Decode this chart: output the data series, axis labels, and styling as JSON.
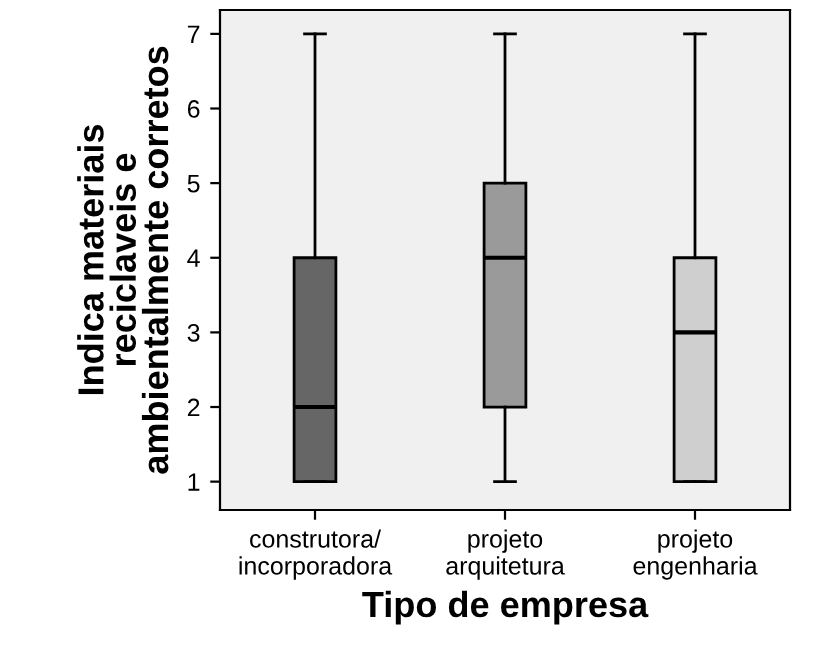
{
  "chart_data": {
    "type": "box",
    "xlabel": "Tipo de empresa",
    "ylabel": "Indica materiais\nreciclaveis e\nambientalmente corretos",
    "categories": [
      "construtora/\nincorporadora",
      "projeto\narquitetura",
      "projeto\nengenharia"
    ],
    "boxes": [
      {
        "low": 1,
        "q1": 1,
        "median": 2,
        "q3": 4,
        "high": 7
      },
      {
        "low": 1,
        "q1": 2,
        "median": 4,
        "q3": 5,
        "high": 7
      },
      {
        "low": 1,
        "q1": 1,
        "median": 3,
        "q3": 4,
        "high": 7
      }
    ],
    "colors": [
      "#666666",
      "#9a9a9a",
      "#cfcfcf"
    ],
    "ylim": [
      0.62,
      7.32
    ],
    "yticks": [
      1,
      2,
      3,
      4,
      5,
      6,
      7
    ],
    "grid": false
  }
}
